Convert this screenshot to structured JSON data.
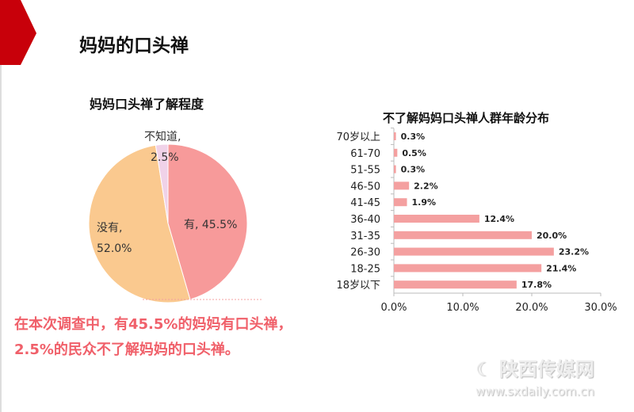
{
  "page": {
    "title": "妈妈的口头禅",
    "conclusion": "在本次调查中，有45.5%的妈妈有口头禅，2.5%的民众不了解妈妈的口头禅。",
    "watermark": {
      "name": "陕西传媒网",
      "url": "www.sxdaily.com.cn"
    },
    "accent": "#C8000A"
  },
  "chart_data": [
    {
      "type": "pie",
      "title": "妈妈口头禅了解程度",
      "slices": [
        {
          "label": "有, 45.5%",
          "name": "有",
          "value": 45.5,
          "color": "#F79A9A"
        },
        {
          "label": "没有, 52.0%",
          "name": "没有",
          "value": 52.0,
          "color": "#FAC98F"
        },
        {
          "label": "不知道, 2.5%",
          "name": "不知道",
          "value": 2.5,
          "color": "#F0D2E8"
        }
      ]
    },
    {
      "type": "bar",
      "orientation": "horizontal",
      "title": "不了解妈妈口头禅人群年龄分布",
      "categories": [
        "70岁以上",
        "61-70",
        "51-55",
        "46-50",
        "41-45",
        "36-40",
        "31-35",
        "26-30",
        "18-25",
        "18岁以下"
      ],
      "values": [
        0.3,
        0.5,
        0.3,
        2.2,
        1.9,
        12.4,
        20.0,
        23.2,
        21.4,
        17.8
      ],
      "labels": [
        "0.3%",
        "0.5%",
        "0.3%",
        "2.2%",
        "1.9%",
        "12.4%",
        "20.0%",
        "23.2%",
        "21.4%",
        "17.8%"
      ],
      "xlim": [
        0,
        30
      ],
      "xticks": [
        "0.0%",
        "10.0%",
        "20.0%",
        "30.0%"
      ],
      "color": "#F4A0A0"
    }
  ]
}
